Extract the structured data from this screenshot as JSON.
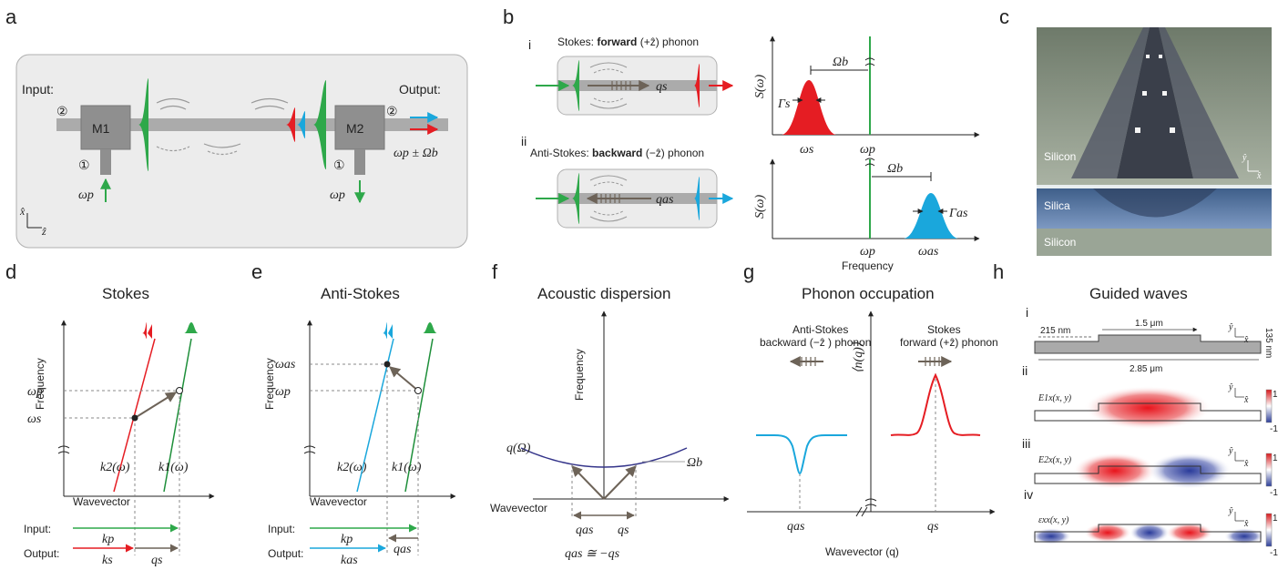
{
  "panel_labels": {
    "a": "a",
    "b": "b",
    "c": "c",
    "d": "d",
    "e": "e",
    "f": "f",
    "g": "g",
    "h": "h",
    "b_i": "i",
    "b_ii": "ii",
    "h_i": "i",
    "h_ii": "ii",
    "h_iii": "iii",
    "h_iv": "iv"
  },
  "panel_a": {
    "input_label": "Input:",
    "output_label": "Output:",
    "m1": "M1",
    "m2": "M2",
    "port_2": "②",
    "port_1": "①",
    "omega_p": "ωp",
    "output_freq": "ωp ± Ωb",
    "axis_x": "x̂",
    "axis_z": "ẑ"
  },
  "panel_b": {
    "stokes_title_pre": "Stokes: ",
    "stokes_title_bold": "forward",
    "stokes_title_post": " (+ẑ) phonon",
    "anti_title_pre": "Anti-Stokes: ",
    "anti_title_bold": "backward",
    "anti_title_post": " (−ẑ) phonon",
    "q_s": "qs",
    "q_as": "qas",
    "s_omega": "S(ω)",
    "omega_b": "Ωb",
    "gamma_s": "Γs",
    "gamma_as": "Γas",
    "omega_s": "ωs",
    "omega_p": "ωp",
    "omega_as": "ωas",
    "frequency": "Frequency"
  },
  "panel_c": {
    "silicon_top": "Silicon",
    "silica": "Silica",
    "silicon_bottom": "Silicon",
    "axis_y": "ŷ",
    "axis_x": "x̂"
  },
  "panel_d": {
    "title": "Stokes",
    "frequency": "Frequency",
    "wavevector": "Wavevector",
    "omega_p": "ωp",
    "omega_s": "ωs",
    "k2": "k2(ω)",
    "k1": "k1(ω)",
    "input": "Input:",
    "output": "Output:",
    "k_p": "kp",
    "k_s": "ks",
    "q_s": "qs"
  },
  "panel_e": {
    "title": "Anti-Stokes",
    "frequency": "Frequency",
    "wavevector": "Wavevector",
    "omega_as": "ωas",
    "omega_p": "ωp",
    "k2": "k2(ω)",
    "k1": "k1(ω)",
    "input": "Input:",
    "output": "Output:",
    "k_p": "kp",
    "k_as": "kas",
    "q_as": "qas"
  },
  "panel_f": {
    "title": "Acoustic dispersion",
    "frequency": "Frequency",
    "wavevector": "Wavevector",
    "q_omega": "q(Ω)",
    "omega_b": "Ωb",
    "q_as": "qas",
    "q_s": "qs",
    "relation": "qas ≅ −qs"
  },
  "panel_g": {
    "title": "Phonon occupation",
    "anti_1": "Anti-Stokes",
    "anti_2": "backward (−ẑ ) phonon",
    "stokes_1": "Stokes",
    "stokes_2": "forward (+ẑ) phonon",
    "n_q": "⟨n(q)⟩",
    "q_as": "qas",
    "q_s": "qs",
    "xlabel": "Wavevector (q)"
  },
  "panel_h": {
    "title": "Guided waves",
    "dim_215": "215 nm",
    "dim_15": "1.5 μm",
    "dim_285": "2.85 μm",
    "dim_135": "135 nm",
    "e1": "E1x(x, y)",
    "e2": "E2x(x, y)",
    "eps": "εxx(x, y)",
    "cb_max": "1",
    "cb_min": "-1",
    "axis_y": "ŷ",
    "axis_x": "x̂"
  },
  "colors": {
    "pump": "#2ea84a",
    "stokes": "#e51d23",
    "anti_stokes": "#1aa7dc",
    "phonon": "#6d6358",
    "dispersion": "#34348a"
  }
}
